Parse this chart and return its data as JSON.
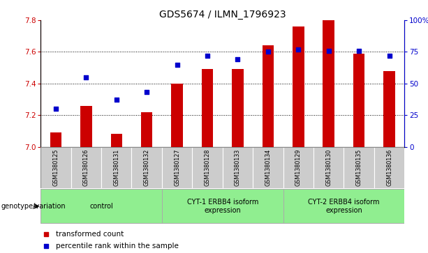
{
  "title": "GDS5674 / ILMN_1796923",
  "samples": [
    "GSM1380125",
    "GSM1380126",
    "GSM1380131",
    "GSM1380132",
    "GSM1380127",
    "GSM1380128",
    "GSM1380133",
    "GSM1380134",
    "GSM1380129",
    "GSM1380130",
    "GSM1380135",
    "GSM1380136"
  ],
  "bar_values": [
    7.09,
    7.26,
    7.08,
    7.22,
    7.4,
    7.49,
    7.49,
    7.64,
    7.76,
    7.8,
    7.59,
    7.48
  ],
  "scatter_values": [
    30,
    55,
    37,
    43,
    65,
    72,
    69,
    75,
    77,
    76,
    76,
    72
  ],
  "bar_color": "#CC0000",
  "scatter_color": "#0000CC",
  "ylim_left": [
    7.0,
    7.8
  ],
  "ylim_right": [
    0,
    100
  ],
  "yticks_left": [
    7.0,
    7.2,
    7.4,
    7.6,
    7.8
  ],
  "yticks_right": [
    0,
    25,
    50,
    75,
    100
  ],
  "ytick_labels_right": [
    "0",
    "25",
    "50",
    "75",
    "100%"
  ],
  "grid_values": [
    7.2,
    7.4,
    7.6
  ],
  "groups": [
    {
      "label": "control",
      "start": 0,
      "end": 3,
      "color": "#90EE90"
    },
    {
      "label": "CYT-1 ERBB4 isoform\nexpression",
      "start": 4,
      "end": 7,
      "color": "#90EE90"
    },
    {
      "label": "CYT-2 ERBB4 isoform\nexpression",
      "start": 8,
      "end": 11,
      "color": "#90EE90"
    }
  ],
  "legend_items": [
    {
      "label": "transformed count",
      "color": "#CC0000"
    },
    {
      "label": "percentile rank within the sample",
      "color": "#0000CC"
    }
  ],
  "xlabel_label": "genotype/variation",
  "title_fontsize": 10,
  "tick_fontsize": 7.5,
  "sample_fontsize": 5.8,
  "group_fontsize": 7,
  "legend_fontsize": 7.5,
  "cell_color": "#CCCCCC",
  "bar_width": 0.38
}
